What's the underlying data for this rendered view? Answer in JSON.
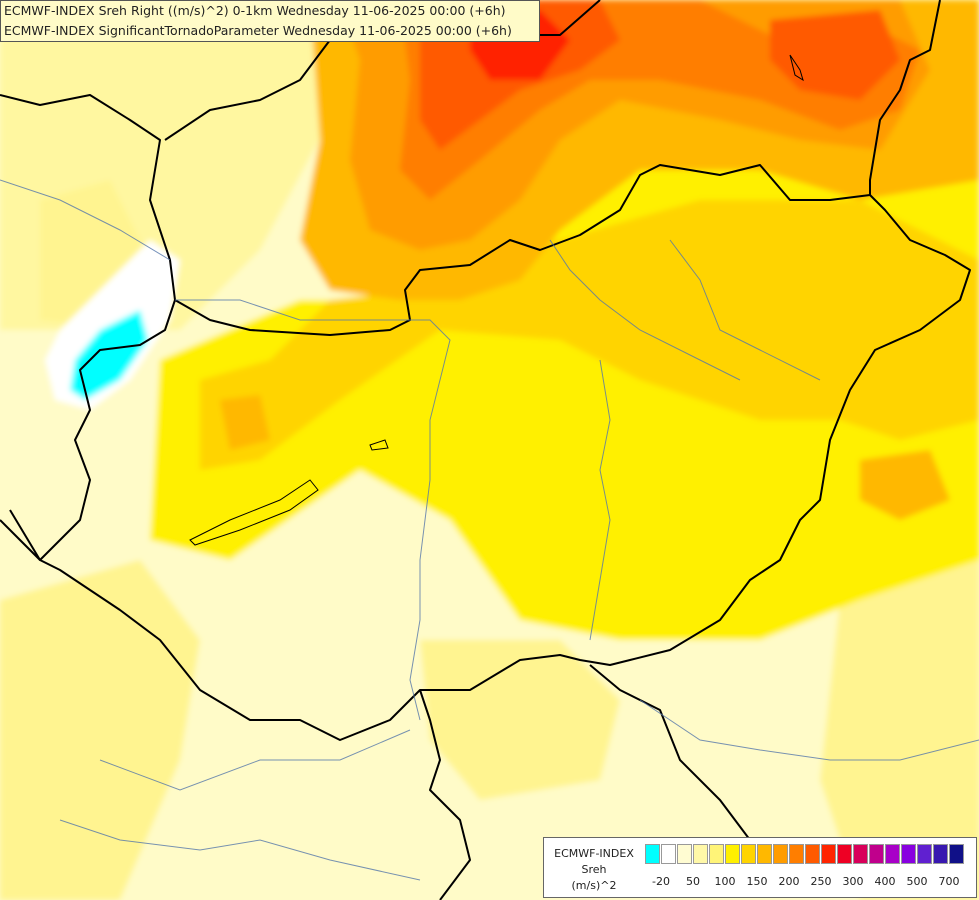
{
  "titles": {
    "line1": "ECMWF-INDEX Sreh Right ((m/s)^2) 0-1km Wednesday 11-06-2025 00:00 (+6h)",
    "line2": "ECMWF-INDEX SignificantTornadoParameter Wednesday 11-06-2025 00:00 (+6h)"
  },
  "legend": {
    "source": "ECMWF-INDEX",
    "variable": "Sreh",
    "unit": "(m/s)^2",
    "colors": [
      "#00ffff",
      "#ffffff",
      "#fffcd2",
      "#fff8a8",
      "#fff478",
      "#fff000",
      "#ffd400",
      "#ffb800",
      "#ff9c00",
      "#ff7e00",
      "#ff5a00",
      "#ff2400",
      "#ee0024",
      "#d8005a",
      "#c0008c",
      "#a800c8",
      "#8800e0",
      "#6020d0",
      "#3818b0",
      "#101088"
    ],
    "ticks": [
      "-20",
      "50",
      "100",
      "150",
      "200",
      "250",
      "300",
      "400",
      "500",
      "700"
    ],
    "tick_index": [
      1,
      3,
      5,
      7,
      9,
      11,
      13,
      15,
      17,
      19
    ]
  }
}
